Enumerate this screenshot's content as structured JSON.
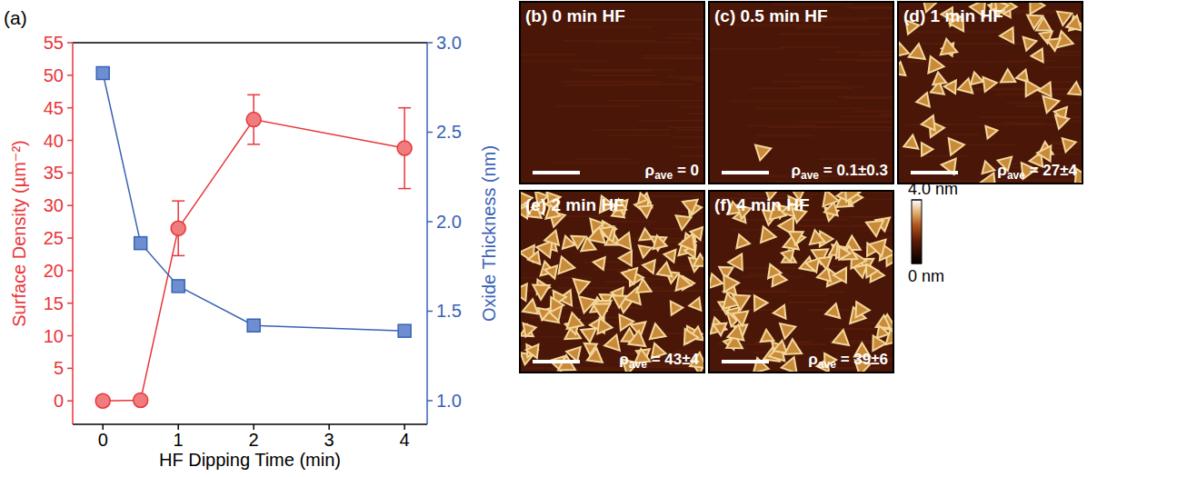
{
  "chart_data": {
    "type": "line",
    "panel_label": "(a)",
    "x_label": "HF Dipping Time (min)",
    "y_label": "Surface Density (µm⁻²)",
    "y2_label": "Oxide Thickness (nm)",
    "x": [
      0,
      0.5,
      1,
      2,
      4
    ],
    "xlim": [
      -0.4,
      4.3
    ],
    "xticks": [
      0,
      1,
      2,
      3,
      4
    ],
    "ylim": [
      -3.6,
      55
    ],
    "yticks": [
      0,
      5,
      10,
      15,
      20,
      25,
      30,
      35,
      40,
      45,
      50,
      55
    ],
    "y2lim": [
      0.868,
      3.0
    ],
    "y2ticks": [
      {
        "value": 1.0,
        "label": "1.0"
      },
      {
        "value": 1.5,
        "label": "1.5"
      },
      {
        "value": 2.0,
        "label": "2.0"
      },
      {
        "value": 2.5,
        "label": "2.5"
      },
      {
        "value": 3.0,
        "label": "3.0"
      }
    ],
    "series": [
      {
        "name": "Surface Density",
        "color": "#e8363a",
        "marker": "circle",
        "line_style": "solid",
        "values": [
          0,
          0.1,
          26.5,
          43.2,
          38.8
        ],
        "errors": [
          0,
          0.3,
          4.2,
          3.8,
          6.2
        ]
      },
      {
        "name": "Oxide Thickness",
        "color": "#3a62b5",
        "marker": "square",
        "line_style": "solid",
        "axis": "y2",
        "values": [
          2.83,
          1.88,
          1.64,
          1.42,
          1.39
        ]
      }
    ],
    "grid": false
  },
  "afm_panels": [
    {
      "title": "(b) 0 min HF",
      "density_label": {
        "symbol": "ρ",
        "subscript": "ave",
        "text": " = 0"
      }
    },
    {
      "title": "(c) 0.5 min HF",
      "density_label": {
        "symbol": "ρ",
        "subscript": "ave",
        "text": " = 0.1±0.3"
      }
    },
    {
      "title": "(d) 1 min HF",
      "density_label": {
        "symbol": "ρ",
        "subscript": "ave",
        "text": " = 27±4"
      }
    },
    {
      "title": "(e) 2 min HF",
      "density_label": {
        "symbol": "ρ",
        "subscript": "ave",
        "text": " = 43±4"
      }
    },
    {
      "title": "(f) 4 min HF",
      "density_label": {
        "symbol": "ρ",
        "subscript": "ave",
        "text": " = 39±6"
      }
    }
  ],
  "colorbar": {
    "range": [
      0,
      4.0
    ],
    "ticks": [
      {
        "value": 4.0,
        "label": "4.0 nm"
      },
      {
        "value": 0,
        "label": "0 nm"
      }
    ]
  }
}
